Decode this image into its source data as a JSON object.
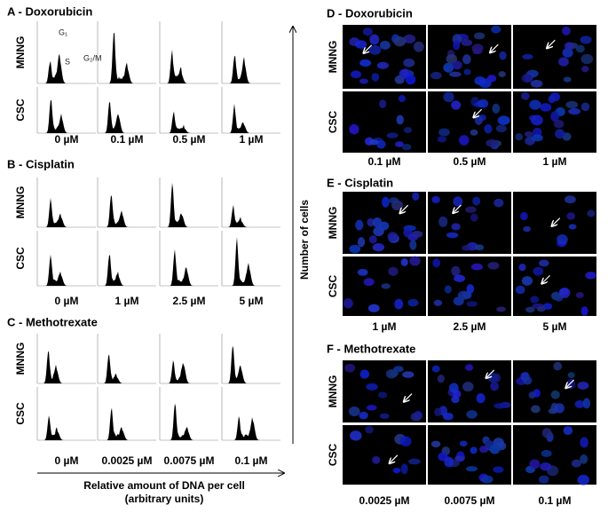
{
  "left_panels": [
    {
      "title": "A - Doxorubicin",
      "rows": [
        "MNNG",
        "CSC"
      ],
      "doses": [
        "0 µM",
        "0.1 µM",
        "0.5 µM",
        "1 µM"
      ]
    },
    {
      "title": "B - Cisplatin",
      "rows": [
        "MNNG",
        "CSC"
      ],
      "doses": [
        "0 µM",
        "1 µM",
        "2.5 µM",
        "5 µM"
      ]
    },
    {
      "title": "C - Methotrexate",
      "rows": [
        "MNNG",
        "CSC"
      ],
      "doses": [
        "0 µM",
        "0.0025 µM",
        "0.0075 µM",
        "0.1 µM"
      ]
    }
  ],
  "right_panels": [
    {
      "title": "D - Doxorubicin",
      "rows": [
        "MNNG",
        "CSC"
      ],
      "doses": [
        "0.1 µM",
        "0.5 µM",
        "1 µM"
      ]
    },
    {
      "title": "E - Cisplatin",
      "rows": [
        "MNNG",
        "CSC"
      ],
      "doses": [
        "1 µM",
        "2.5 µM",
        "5 µM"
      ]
    },
    {
      "title": "F - Methotrexate",
      "rows": [
        "MNNG",
        "CSC"
      ],
      "doses": [
        "0.0025 µM",
        "0.0075 µM",
        "0.1 µM"
      ]
    }
  ],
  "phase_labels": [
    "G₁",
    "S",
    "G₂/M"
  ],
  "y_axis_label": "Number of cells",
  "x_axis_label": "Relative amount of DNA per cell",
  "x_axis_sublabel": "(arbitrary units)"
}
